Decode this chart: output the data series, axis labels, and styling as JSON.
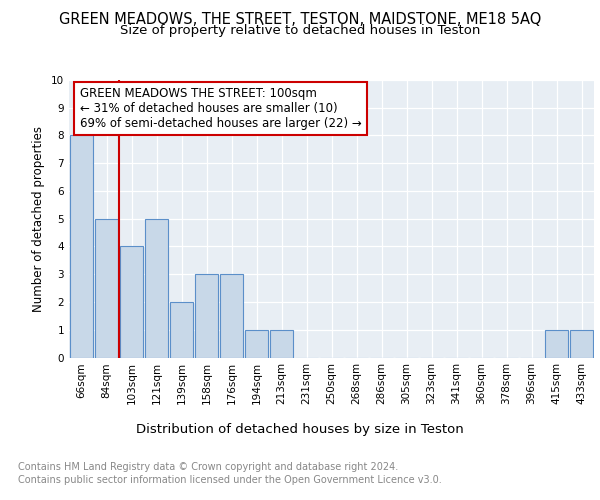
{
  "title": "GREEN MEADOWS, THE STREET, TESTON, MAIDSTONE, ME18 5AQ",
  "subtitle": "Size of property relative to detached houses in Teston",
  "xlabel": "Distribution of detached houses by size in Teston",
  "ylabel": "Number of detached properties",
  "bins": [
    "66sqm",
    "84sqm",
    "103sqm",
    "121sqm",
    "139sqm",
    "158sqm",
    "176sqm",
    "194sqm",
    "213sqm",
    "231sqm",
    "250sqm",
    "268sqm",
    "286sqm",
    "305sqm",
    "323sqm",
    "341sqm",
    "360sqm",
    "378sqm",
    "396sqm",
    "415sqm",
    "433sqm"
  ],
  "values": [
    8,
    5,
    4,
    5,
    2,
    3,
    3,
    1,
    1,
    0,
    0,
    0,
    0,
    0,
    0,
    0,
    0,
    0,
    0,
    1,
    1
  ],
  "bar_color": "#c8d8e8",
  "bar_edge_color": "#5b8fc9",
  "red_line_index": 2,
  "annotation_title": "GREEN MEADOWS THE STREET: 100sqm",
  "annotation_line1": "← 31% of detached houses are smaller (10)",
  "annotation_line2": "69% of semi-detached houses are larger (22) →",
  "annotation_box_color": "#ffffff",
  "annotation_box_edge": "#cc0000",
  "red_line_color": "#cc0000",
  "ylim": [
    0,
    10
  ],
  "yticks": [
    0,
    1,
    2,
    3,
    4,
    5,
    6,
    7,
    8,
    9,
    10
  ],
  "footer_line1": "Contains HM Land Registry data © Crown copyright and database right 2024.",
  "footer_line2": "Contains public sector information licensed under the Open Government Licence v3.0.",
  "background_color": "#e8eef4",
  "grid_color": "#ffffff",
  "title_fontsize": 10.5,
  "subtitle_fontsize": 9.5,
  "xlabel_fontsize": 9.5,
  "ylabel_fontsize": 8.5,
  "tick_fontsize": 7.5,
  "annotation_fontsize": 8.5,
  "footer_fontsize": 7
}
